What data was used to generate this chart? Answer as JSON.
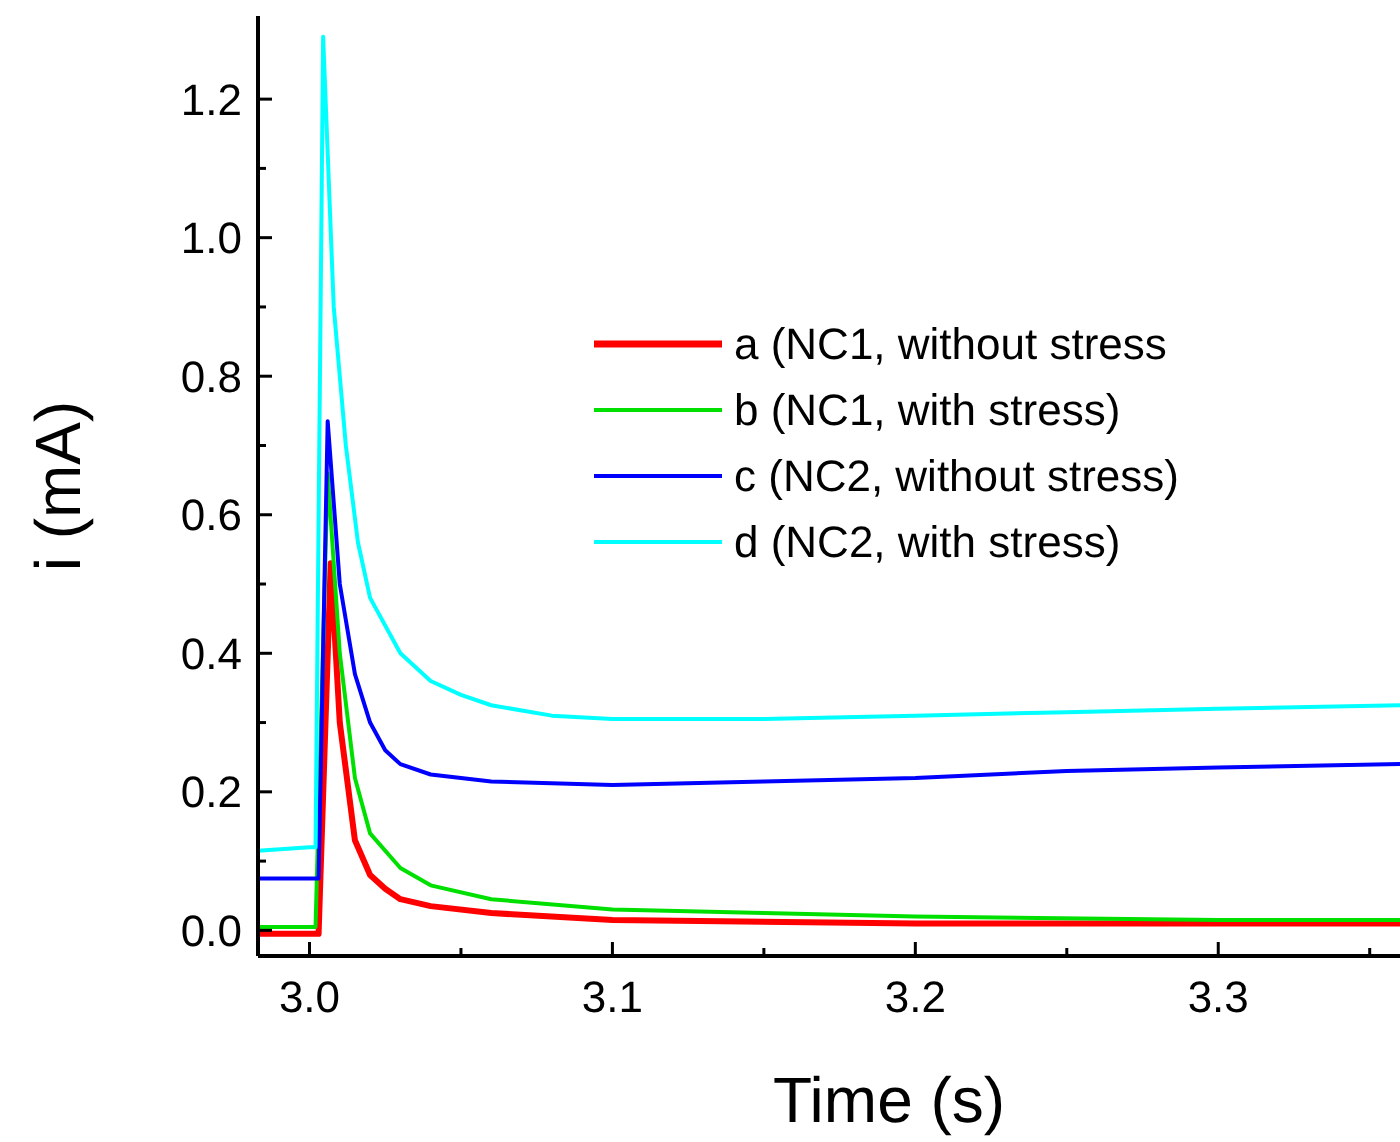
{
  "chart_data": {
    "type": "line",
    "xlabel": "Time (s)",
    "ylabel": "i (mA)",
    "xlim": [
      2.983,
      3.36
    ],
    "ylim": [
      -0.037,
      1.32
    ],
    "xticks": [
      {
        "value": 3.0,
        "label": "3.0"
      },
      {
        "value": 3.05,
        "label": null
      },
      3.1,
      {
        "value": 3.15,
        "label": null
      },
      3.2,
      {
        "value": 3.25,
        "label": null
      },
      3.3,
      {
        "value": 3.35,
        "label": null
      }
    ],
    "yticks": [
      "0.0",
      {
        "value": 0.1,
        "label": null
      },
      0.2,
      {
        "value": 0.3,
        "label": null
      },
      0.4,
      {
        "value": 0.5,
        "label": null
      },
      0.6,
      {
        "value": 0.7,
        "label": null
      },
      0.8,
      {
        "value": 0.9,
        "label": null
      },
      "1.0",
      {
        "value": 1.1,
        "label": null
      },
      1.2
    ],
    "legend": "top right",
    "grid": false,
    "line_style": "solid",
    "series": [
      {
        "name": "a (NC1, without stress",
        "color": "#ff0000",
        "x": [
          2.983,
          3.0,
          3.003,
          3.007,
          3.01,
          3.015,
          3.02,
          3.025,
          3.03,
          3.04,
          3.06,
          3.1,
          3.2,
          3.36
        ],
        "values": [
          -0.005,
          -0.005,
          -0.005,
          0.53,
          0.3,
          0.13,
          0.08,
          0.06,
          0.045,
          0.035,
          0.025,
          0.015,
          0.01,
          0.01
        ]
      },
      {
        "name": "b (NC1, with stress)",
        "color": "#00e000",
        "x": [
          2.983,
          3.0,
          3.002,
          3.006,
          3.01,
          3.015,
          3.02,
          3.03,
          3.04,
          3.06,
          3.1,
          3.15,
          3.2,
          3.3,
          3.36
        ],
        "values": [
          0.005,
          0.005,
          0.005,
          0.66,
          0.4,
          0.22,
          0.14,
          0.09,
          0.065,
          0.045,
          0.03,
          0.025,
          0.02,
          0.015,
          0.015
        ]
      },
      {
        "name": "c (NC2, without stress)",
        "color": "#0000ff",
        "x": [
          2.983,
          3.0,
          3.003,
          3.006,
          3.01,
          3.015,
          3.02,
          3.025,
          3.03,
          3.04,
          3.06,
          3.1,
          3.15,
          3.2,
          3.25,
          3.3,
          3.36
        ],
        "values": [
          0.075,
          0.075,
          0.075,
          0.735,
          0.5,
          0.37,
          0.3,
          0.26,
          0.24,
          0.225,
          0.215,
          0.21,
          0.215,
          0.22,
          0.23,
          0.235,
          0.24
        ]
      },
      {
        "name": "d (NC2, with stress)",
        "color": "#00ffff",
        "x": [
          2.983,
          3.0,
          3.002,
          3.0045,
          3.008,
          3.012,
          3.016,
          3.02,
          3.03,
          3.04,
          3.05,
          3.06,
          3.08,
          3.1,
          3.15,
          3.2,
          3.25,
          3.3,
          3.36
        ],
        "values": [
          0.115,
          0.12,
          0.12,
          1.29,
          0.9,
          0.7,
          0.56,
          0.48,
          0.4,
          0.36,
          0.34,
          0.325,
          0.31,
          0.305,
          0.305,
          0.31,
          0.315,
          0.32,
          0.325
        ]
      }
    ]
  }
}
